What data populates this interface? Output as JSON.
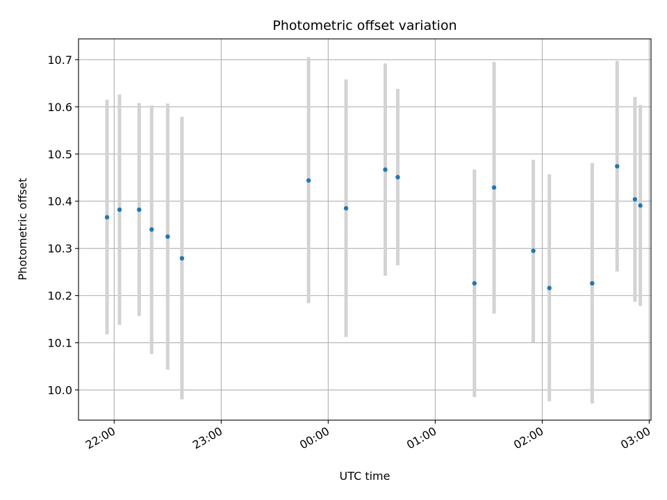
{
  "chart_data": {
    "type": "scatter",
    "title": "Photometric offset variation",
    "xlabel": "UTC time",
    "ylabel": "Photometric offset",
    "xlim": [
      "21:40",
      "03:01"
    ],
    "ylim": [
      9.936,
      10.744
    ],
    "x_ticks": [
      "22:00",
      "23:00",
      "00:00",
      "01:00",
      "02:00",
      "03:00"
    ],
    "y_ticks": [
      "10.0",
      "10.1",
      "10.2",
      "10.3",
      "10.4",
      "10.5",
      "10.6",
      "10.7"
    ],
    "grid": true,
    "colors": {
      "point": "#1f77b4",
      "error_bar": "#d3d3d3",
      "grid": "#b0b0b0"
    },
    "points": [
      {
        "x": "21:56",
        "y": 10.366,
        "y_low": 10.118,
        "y_high": 10.615
      },
      {
        "x": "22:03",
        "y": 10.382,
        "y_low": 10.138,
        "y_high": 10.626
      },
      {
        "x": "22:14",
        "y": 10.382,
        "y_low": 10.157,
        "y_high": 10.608
      },
      {
        "x": "22:21",
        "y": 10.34,
        "y_low": 10.076,
        "y_high": 10.603
      },
      {
        "x": "22:30",
        "y": 10.325,
        "y_low": 10.043,
        "y_high": 10.607
      },
      {
        "x": "22:38",
        "y": 10.279,
        "y_low": 9.98,
        "y_high": 10.579
      },
      {
        "x": "23:49",
        "y": 10.444,
        "y_low": 10.184,
        "y_high": 10.705
      },
      {
        "x": "00:10",
        "y": 10.385,
        "y_low": 10.112,
        "y_high": 10.658
      },
      {
        "x": "00:32",
        "y": 10.467,
        "y_low": 10.242,
        "y_high": 10.692
      },
      {
        "x": "00:39",
        "y": 10.451,
        "y_low": 10.264,
        "y_high": 10.638
      },
      {
        "x": "01:22",
        "y": 10.226,
        "y_low": 9.985,
        "y_high": 10.467
      },
      {
        "x": "01:33",
        "y": 10.429,
        "y_low": 10.162,
        "y_high": 10.695
      },
      {
        "x": "01:55",
        "y": 10.295,
        "y_low": 10.101,
        "y_high": 10.488
      },
      {
        "x": "02:04",
        "y": 10.216,
        "y_low": 9.976,
        "y_high": 10.457
      },
      {
        "x": "02:28",
        "y": 10.226,
        "y_low": 9.971,
        "y_high": 10.481
      },
      {
        "x": "02:42",
        "y": 10.474,
        "y_low": 10.251,
        "y_high": 10.697
      },
      {
        "x": "02:52",
        "y": 10.404,
        "y_low": 10.187,
        "y_high": 10.621
      },
      {
        "x": "02:55",
        "y": 10.391,
        "y_low": 10.178,
        "y_high": 10.604
      }
    ]
  }
}
